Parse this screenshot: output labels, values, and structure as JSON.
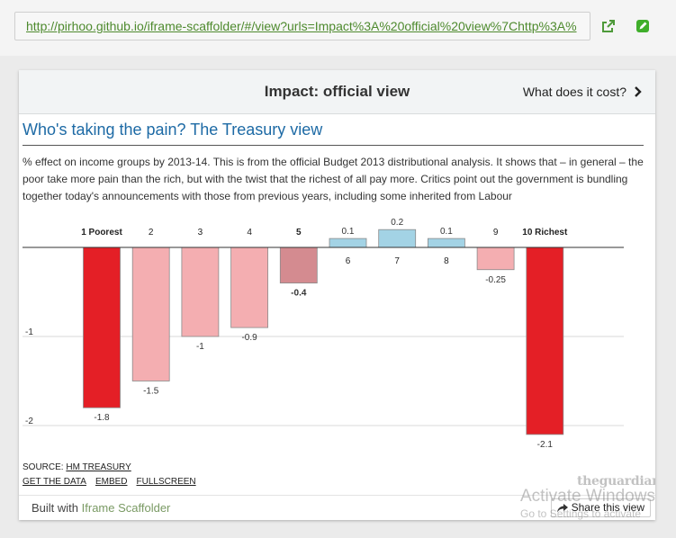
{
  "address": {
    "url": "http://pirhoo.github.io/iframe-scaffolder/#/view?urls=Impact%3A%20official%20view%7Chttp%3A%"
  },
  "icons": {
    "external": "external-link-icon",
    "edit": "pencil-edit-icon",
    "next": "chevron-right-icon",
    "share": "share-arrow-icon"
  },
  "viewer": {
    "view_title": "Impact: official view",
    "next_label": "What does it cost?"
  },
  "article": {
    "headline": "Who's taking the pain? The Treasury view",
    "standfirst": "% effect on income groups by 2013-14. This is from the official Budget 2013 distributional analysis. It shows that – in general – the poor take more pain than the rich, but with the twist that the richest of all pay more. Critics point out the government is bundling together today's announcements with those from previous years, including some inherited from Labour",
    "source_prefix": "SOURCE: ",
    "source_link": "HM TREASURY",
    "get_data": "GET THE DATA",
    "embed": "EMBED",
    "fullscreen": "FULLSCREEN",
    "logo_text": "theguardian"
  },
  "colors": {
    "accent": "#1d6aa5",
    "dark_red": "#e41f26",
    "mid_red": "#d48b90",
    "light_red": "#f4aeb1",
    "blue": "#a3d3e5",
    "link_green": "#4e8a2e"
  },
  "footer": {
    "built_with": "Built with ",
    "brand": "Iframe Scaffolder",
    "share": "Share this view"
  },
  "watermark": {
    "line1": "Activate Windows",
    "line2": "Go to Settings to activate"
  },
  "chart_data": {
    "type": "bar",
    "categories": [
      "1 Poorest",
      "2",
      "3",
      "4",
      "5",
      "6",
      "7",
      "8",
      "9",
      "10 Richest"
    ],
    "values": [
      -1.8,
      -1.5,
      -1,
      -0.9,
      -0.4,
      0.1,
      0.2,
      0.1,
      -0.25,
      -2.1
    ],
    "value_labels": [
      "-1.8",
      "-1.5",
      "-1",
      "-0.9",
      "-0.4",
      "0.1",
      "0.2",
      "0.1",
      "-0.25",
      "-2.1"
    ],
    "bar_colors": [
      "#e41f26",
      "#f4aeb1",
      "#f4aeb1",
      "#f4aeb1",
      "#d48b90",
      "#a3d3e5",
      "#a3d3e5",
      "#a3d3e5",
      "#f4aeb1",
      "#e41f26"
    ],
    "bold_categories": [
      0,
      4,
      9
    ],
    "y_ticks": [
      -1,
      -2
    ],
    "y_tick_labels": [
      "-1",
      "-2"
    ],
    "ylim": [
      -2.2,
      0.2
    ],
    "grid": true
  }
}
